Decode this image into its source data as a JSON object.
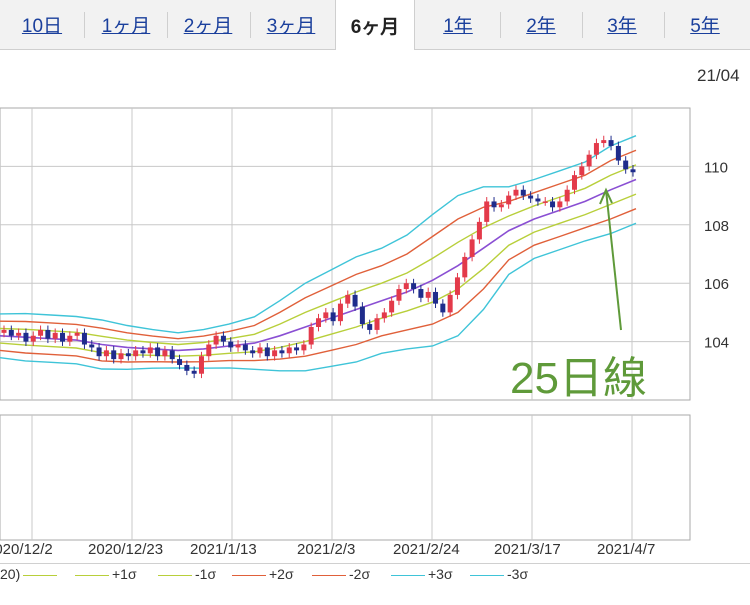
{
  "tabs": [
    {
      "label": "10日",
      "active": false
    },
    {
      "label": "1ヶ月",
      "active": false
    },
    {
      "label": "2ヶ月",
      "active": false
    },
    {
      "label": "3ヶ月",
      "active": false
    },
    {
      "label": "6ヶ月",
      "active": true
    },
    {
      "label": "1年",
      "active": false
    },
    {
      "label": "2年",
      "active": false
    },
    {
      "label": "3年",
      "active": false
    },
    {
      "label": "5年",
      "active": false
    }
  ],
  "chart_data": {
    "type": "candlestick",
    "top_right_label": "21/04",
    "y_ticks": [
      104,
      106,
      108,
      110
    ],
    "ylim": [
      102.0,
      112.0
    ],
    "x_ticks": [
      "2020/12/2",
      "2020/12/23",
      "2021/1/13",
      "2021/2/3",
      "2021/2/24",
      "2021/3/17",
      "2021/4/7"
    ],
    "grid": true,
    "annotation": "25日線",
    "legend": [
      {
        "label": "20)",
        "color": "#8a4fd3"
      },
      {
        "label": "+1σ",
        "color": "#b8cf3a"
      },
      {
        "label": "-1σ",
        "color": "#b8cf3a"
      },
      {
        "label": "+2σ",
        "color": "#e0603a"
      },
      {
        "label": "-2σ",
        "color": "#e0603a"
      },
      {
        "label": "+3σ",
        "color": "#3fc4d8"
      },
      {
        "label": "-3σ",
        "color": "#3fc4d8"
      }
    ],
    "colors": {
      "up": "#e33a4a",
      "down": "#1f2c8c",
      "ma": "#8a4fd3",
      "sigma1": "#b8cf3a",
      "sigma2": "#e0603a",
      "sigma3": "#3fc4d8",
      "annotation": "#5f9a3a"
    },
    "bands": {
      "x": [
        0,
        0.04,
        0.08,
        0.12,
        0.16,
        0.2,
        0.24,
        0.28,
        0.32,
        0.36,
        0.4,
        0.44,
        0.48,
        0.52,
        0.56,
        0.6,
        0.64,
        0.68,
        0.72,
        0.76,
        0.8,
        0.84,
        0.88,
        0.92,
        0.96,
        1.0
      ],
      "ma": [
        104.2,
        104.15,
        104.1,
        104.05,
        103.9,
        103.8,
        103.75,
        103.7,
        103.75,
        103.85,
        103.95,
        104.2,
        104.5,
        104.8,
        105.1,
        105.4,
        105.7,
        106.1,
        106.6,
        107.2,
        107.8,
        108.2,
        108.5,
        108.8,
        109.2,
        109.55
      ],
      "sigma1": [
        0.25,
        0.27,
        0.27,
        0.27,
        0.28,
        0.25,
        0.22,
        0.2,
        0.22,
        0.25,
        0.3,
        0.4,
        0.5,
        0.55,
        0.6,
        0.6,
        0.65,
        0.75,
        0.8,
        0.7,
        0.5,
        0.45,
        0.45,
        0.45,
        0.5,
        0.5
      ],
      "sigma2": [
        0.5,
        0.54,
        0.54,
        0.54,
        0.56,
        0.5,
        0.44,
        0.4,
        0.44,
        0.5,
        0.6,
        0.8,
        1.0,
        1.1,
        1.2,
        1.2,
        1.3,
        1.5,
        1.6,
        1.4,
        1.0,
        0.9,
        0.9,
        0.9,
        1.0,
        1.0
      ],
      "sigma3": [
        0.75,
        0.81,
        0.81,
        0.81,
        0.84,
        0.75,
        0.66,
        0.6,
        0.66,
        0.75,
        0.9,
        1.2,
        1.5,
        1.65,
        1.8,
        1.8,
        1.95,
        2.25,
        2.4,
        2.1,
        1.5,
        1.35,
        1.35,
        1.35,
        1.5,
        1.5
      ]
    },
    "candles_close": [
      104.4,
      104.2,
      104.3,
      104.0,
      104.2,
      104.4,
      104.1,
      104.3,
      104.0,
      104.2,
      104.3,
      103.9,
      103.8,
      103.5,
      103.7,
      103.4,
      103.6,
      103.5,
      103.7,
      103.6,
      103.8,
      103.5,
      103.7,
      103.4,
      103.2,
      103.0,
      102.9,
      103.5,
      103.9,
      104.2,
      104.0,
      103.8,
      103.9,
      103.7,
      103.6,
      103.8,
      103.5,
      103.7,
      103.6,
      103.8,
      103.7,
      103.9,
      104.5,
      104.8,
      105.0,
      104.7,
      105.3,
      105.6,
      105.2,
      104.6,
      104.4,
      104.8,
      105.0,
      105.4,
      105.8,
      106.0,
      105.8,
      105.5,
      105.7,
      105.3,
      105.0,
      105.6,
      106.2,
      106.9,
      107.5,
      108.1,
      108.8,
      108.6,
      108.7,
      109.0,
      109.2,
      109.0,
      108.9,
      108.8,
      108.8,
      108.6,
      108.8,
      109.2,
      109.7,
      110.0,
      110.4,
      110.8,
      110.9,
      110.7,
      110.2,
      109.9,
      109.8
    ]
  }
}
